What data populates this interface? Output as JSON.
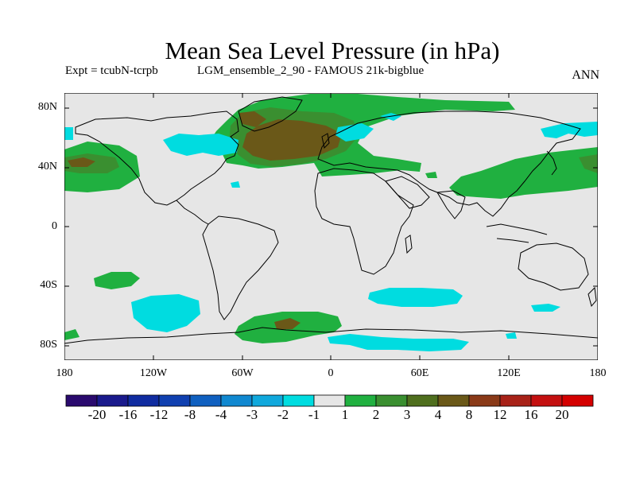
{
  "title": "Mean Sea Level Pressure (in hPa)",
  "experiment": "Expt = tcubN-tcrpb",
  "ensemble": "LGM_ensemble_2_90 - FAMOUS 21k-bigblue",
  "season": "ANN",
  "lat_labels": [
    "80N",
    "40N",
    "0",
    "40S",
    "80S"
  ],
  "lon_labels": [
    "180",
    "120W",
    "60W",
    "0",
    "60E",
    "120E",
    "180"
  ],
  "colorbar": {
    "labels": [
      "-20",
      "-16",
      "-12",
      "-8",
      "-4",
      "-3",
      "-2",
      "-1",
      "1",
      "2",
      "3",
      "4",
      "8",
      "12",
      "16",
      "20"
    ],
    "colors": [
      "#2a0a6e",
      "#1a1a8c",
      "#102ca0",
      "#1040b0",
      "#1060c0",
      "#1088d0",
      "#10a8dc",
      "#00dce0",
      "#e6e6e6",
      "#20b040",
      "#3a8f30",
      "#4f6f1e",
      "#6a5818",
      "#8a3a18",
      "#a82218",
      "#c41010",
      "#d40000"
    ]
  },
  "colors": {
    "background": "#e6e6e6",
    "light_green": "#20b040",
    "mid_green": "#3a8f30",
    "brown": "#6a5818",
    "cyan": "#00dce0"
  }
}
